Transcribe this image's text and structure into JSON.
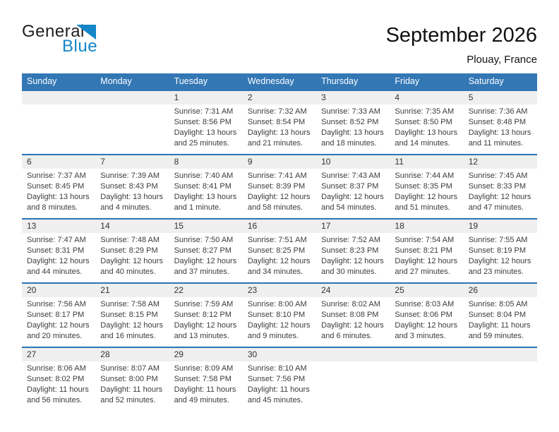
{
  "page": {
    "logo": {
      "general": "General",
      "blue": "Blue"
    },
    "title": "September 2026",
    "subtitle": "Plouay, France"
  },
  "colors": {
    "header_blue": "#3377B5",
    "week_divider_blue": "#2E74B5",
    "logo_blue": "#1486C8",
    "day_strip_gray": "#EFEFEF"
  },
  "calendar": {
    "weekdays": [
      "Sunday",
      "Monday",
      "Tuesday",
      "Wednesday",
      "Thursday",
      "Friday",
      "Saturday"
    ],
    "labels": {
      "sunrise": "Sunrise:",
      "sunset": "Sunset:",
      "daylight": "Daylight:"
    },
    "weeks": [
      [
        null,
        null,
        {
          "day": "1",
          "sunrise": "7:31 AM",
          "sunset": "8:56 PM",
          "daylight": "13 hours and 25 minutes."
        },
        {
          "day": "2",
          "sunrise": "7:32 AM",
          "sunset": "8:54 PM",
          "daylight": "13 hours and 21 minutes."
        },
        {
          "day": "3",
          "sunrise": "7:33 AM",
          "sunset": "8:52 PM",
          "daylight": "13 hours and 18 minutes."
        },
        {
          "day": "4",
          "sunrise": "7:35 AM",
          "sunset": "8:50 PM",
          "daylight": "13 hours and 14 minutes."
        },
        {
          "day": "5",
          "sunrise": "7:36 AM",
          "sunset": "8:48 PM",
          "daylight": "13 hours and 11 minutes."
        }
      ],
      [
        {
          "day": "6",
          "sunrise": "7:37 AM",
          "sunset": "8:45 PM",
          "daylight": "13 hours and 8 minutes."
        },
        {
          "day": "7",
          "sunrise": "7:39 AM",
          "sunset": "8:43 PM",
          "daylight": "13 hours and 4 minutes."
        },
        {
          "day": "8",
          "sunrise": "7:40 AM",
          "sunset": "8:41 PM",
          "daylight": "13 hours and 1 minute."
        },
        {
          "day": "9",
          "sunrise": "7:41 AM",
          "sunset": "8:39 PM",
          "daylight": "12 hours and 58 minutes."
        },
        {
          "day": "10",
          "sunrise": "7:43 AM",
          "sunset": "8:37 PM",
          "daylight": "12 hours and 54 minutes."
        },
        {
          "day": "11",
          "sunrise": "7:44 AM",
          "sunset": "8:35 PM",
          "daylight": "12 hours and 51 minutes."
        },
        {
          "day": "12",
          "sunrise": "7:45 AM",
          "sunset": "8:33 PM",
          "daylight": "12 hours and 47 minutes."
        }
      ],
      [
        {
          "day": "13",
          "sunrise": "7:47 AM",
          "sunset": "8:31 PM",
          "daylight": "12 hours and 44 minutes."
        },
        {
          "day": "14",
          "sunrise": "7:48 AM",
          "sunset": "8:29 PM",
          "daylight": "12 hours and 40 minutes."
        },
        {
          "day": "15",
          "sunrise": "7:50 AM",
          "sunset": "8:27 PM",
          "daylight": "12 hours and 37 minutes."
        },
        {
          "day": "16",
          "sunrise": "7:51 AM",
          "sunset": "8:25 PM",
          "daylight": "12 hours and 34 minutes."
        },
        {
          "day": "17",
          "sunrise": "7:52 AM",
          "sunset": "8:23 PM",
          "daylight": "12 hours and 30 minutes."
        },
        {
          "day": "18",
          "sunrise": "7:54 AM",
          "sunset": "8:21 PM",
          "daylight": "12 hours and 27 minutes."
        },
        {
          "day": "19",
          "sunrise": "7:55 AM",
          "sunset": "8:19 PM",
          "daylight": "12 hours and 23 minutes."
        }
      ],
      [
        {
          "day": "20",
          "sunrise": "7:56 AM",
          "sunset": "8:17 PM",
          "daylight": "12 hours and 20 minutes."
        },
        {
          "day": "21",
          "sunrise": "7:58 AM",
          "sunset": "8:15 PM",
          "daylight": "12 hours and 16 minutes."
        },
        {
          "day": "22",
          "sunrise": "7:59 AM",
          "sunset": "8:12 PM",
          "daylight": "12 hours and 13 minutes."
        },
        {
          "day": "23",
          "sunrise": "8:00 AM",
          "sunset": "8:10 PM",
          "daylight": "12 hours and 9 minutes."
        },
        {
          "day": "24",
          "sunrise": "8:02 AM",
          "sunset": "8:08 PM",
          "daylight": "12 hours and 6 minutes."
        },
        {
          "day": "25",
          "sunrise": "8:03 AM",
          "sunset": "8:06 PM",
          "daylight": "12 hours and 3 minutes."
        },
        {
          "day": "26",
          "sunrise": "8:05 AM",
          "sunset": "8:04 PM",
          "daylight": "11 hours and 59 minutes."
        }
      ],
      [
        {
          "day": "27",
          "sunrise": "8:06 AM",
          "sunset": "8:02 PM",
          "daylight": "11 hours and 56 minutes."
        },
        {
          "day": "28",
          "sunrise": "8:07 AM",
          "sunset": "8:00 PM",
          "daylight": "11 hours and 52 minutes."
        },
        {
          "day": "29",
          "sunrise": "8:09 AM",
          "sunset": "7:58 PM",
          "daylight": "11 hours and 49 minutes."
        },
        {
          "day": "30",
          "sunrise": "8:10 AM",
          "sunset": "7:56 PM",
          "daylight": "11 hours and 45 minutes."
        },
        null,
        null,
        null
      ]
    ]
  }
}
